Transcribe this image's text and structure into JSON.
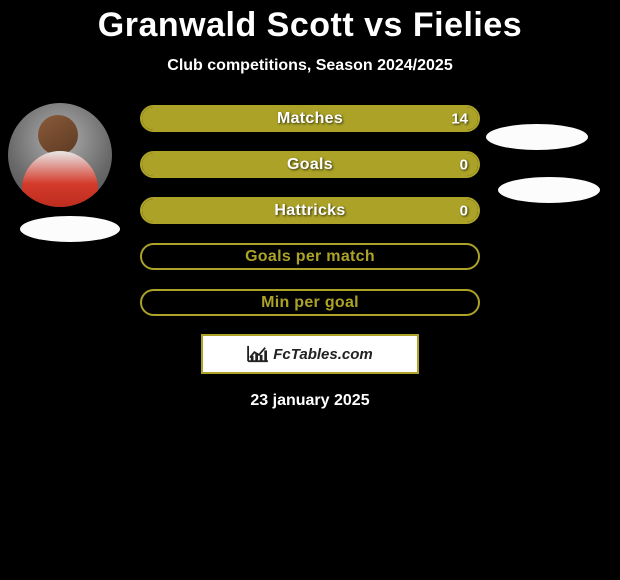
{
  "title": "Granwald Scott vs Fielies",
  "subtitle": "Club competitions, Season 2024/2025",
  "date": "23 january 2025",
  "watermark": "FcTables.com",
  "colors": {
    "bar_fill": "#aba227",
    "bar_border": "#aba227",
    "pill_bg": "#fcfcfc",
    "empty_border": "#aba227"
  },
  "stats": [
    {
      "label": "Matches",
      "value": "14",
      "filled": true
    },
    {
      "label": "Goals",
      "value": "0",
      "filled": true
    },
    {
      "label": "Hattricks",
      "value": "0",
      "filled": true
    },
    {
      "label": "Goals per match",
      "value": "",
      "filled": false
    },
    {
      "label": "Min per goal",
      "value": "",
      "filled": false
    }
  ]
}
